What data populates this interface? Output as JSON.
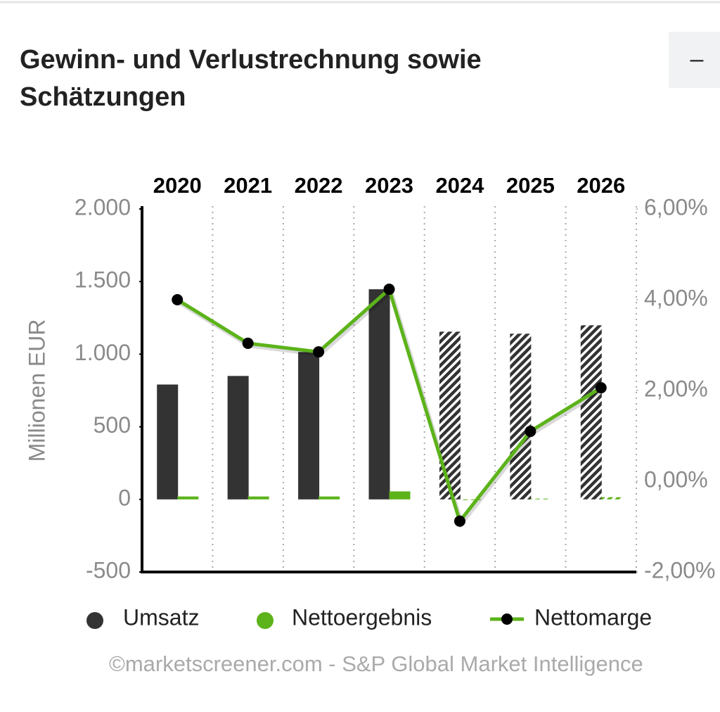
{
  "header": {
    "title_lines": [
      "Gewinn- und Verlustrechnung sowie",
      "Schätzungen"
    ],
    "collapse_button": "–"
  },
  "chart_data": {
    "type": "bar-line",
    "categories": [
      "2020",
      "2021",
      "2022",
      "2023",
      "2024",
      "2025",
      "2026"
    ],
    "ylabel": "Millionen EUR",
    "ylim": [
      -500,
      2000
    ],
    "yticks": [
      {
        "value": -500,
        "label": "-500"
      },
      0,
      500,
      {
        "value": 1000,
        "label": "1.000"
      },
      {
        "value": 1500,
        "label": "1.500"
      },
      {
        "value": 2000,
        "label": "2.000"
      }
    ],
    "y2lim": [
      -2,
      6
    ],
    "y2ticks": [
      {
        "value": -2,
        "label": "-2,00%"
      },
      {
        "value": 0,
        "label": "0,00%"
      },
      {
        "value": 2,
        "label": "2,00%"
      },
      {
        "value": 4,
        "label": "4,00%"
      },
      {
        "value": 6,
        "label": "6,00%"
      }
    ],
    "hatched_from": "2024",
    "series": [
      {
        "name": "Umsatz",
        "color": "#333333",
        "kind": "bar",
        "values": [
          791,
          850,
          1015,
          1447,
          1155,
          1141,
          1199
        ]
      },
      {
        "name": "Nettoergebnis",
        "color": "#5cb31a",
        "kind": "bar",
        "values": [
          20,
          20,
          20,
          55,
          -5,
          5,
          15
        ]
      },
      {
        "name": "Nettomarge",
        "color": "#5cb31a",
        "kind": "line",
        "axis": "y2",
        "values": [
          4.0,
          3.04,
          2.85,
          4.23,
          -0.88,
          1.1,
          2.06
        ]
      }
    ],
    "source": "©marketscreener.com - S&P Global Market Intelligence"
  }
}
